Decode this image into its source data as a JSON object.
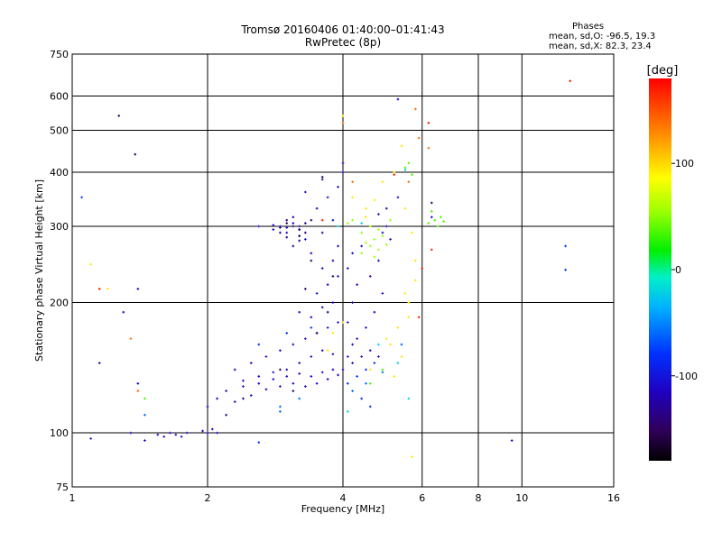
{
  "header": {
    "title": "Tromsø 20160406 01:40:00–01:41:43",
    "subtitle": "RwPretec (8p)"
  },
  "stats": {
    "heading": "Phases",
    "line_o": "mean, sd,O: -96.5, 19.3",
    "line_x": "mean, sd,X:  82.3, 23.4"
  },
  "colorbar": {
    "title": "[deg]",
    "ticks": [
      {
        "value": 100,
        "label": "100"
      },
      {
        "value": 0,
        "label": "0"
      },
      {
        "value": -100,
        "label": "-100"
      }
    ],
    "range": [
      -180,
      180
    ]
  },
  "chart_data": {
    "type": "scatter",
    "xlabel": "Frequency [MHz]",
    "ylabel": "Stationary phase Virtual Height [km]",
    "xscale": "log",
    "yscale": "log",
    "xlim": [
      1,
      16
    ],
    "ylim": [
      75,
      750
    ],
    "xticks": [
      {
        "value": 1,
        "label": "1"
      },
      {
        "value": 2,
        "label": "2"
      },
      {
        "value": 4,
        "label": "4"
      },
      {
        "value": 6,
        "label": "6"
      },
      {
        "value": 8,
        "label": "8"
      },
      {
        "value": 10,
        "label": "10"
      },
      {
        "value": 16,
        "label": "16"
      }
    ],
    "yticks": [
      {
        "value": 75,
        "label": "75"
      },
      {
        "value": 100,
        "label": "100"
      },
      {
        "value": 200,
        "label": "200"
      },
      {
        "value": 300,
        "label": "300"
      },
      {
        "value": 400,
        "label": "400"
      },
      {
        "value": 500,
        "label": "500"
      },
      {
        "value": 600,
        "label": "600"
      },
      {
        "value": 750,
        "label": "750"
      }
    ],
    "grid": true,
    "series": [
      {
        "color_value": -110,
        "points": [
          [
            1.55,
            99
          ],
          [
            1.6,
            98
          ],
          [
            1.65,
            100
          ],
          [
            1.7,
            99
          ],
          [
            1.75,
            98
          ],
          [
            1.8,
            100
          ],
          [
            1.95,
            101
          ],
          [
            2.0,
            100
          ],
          [
            2.05,
            102
          ],
          [
            2.1,
            100
          ],
          [
            2.0,
            115
          ],
          [
            2.1,
            120
          ],
          [
            2.2,
            125
          ],
          [
            2.3,
            118
          ],
          [
            2.4,
            128
          ],
          [
            2.5,
            122
          ],
          [
            2.6,
            130
          ],
          [
            2.7,
            126
          ],
          [
            2.8,
            133
          ],
          [
            2.9,
            128
          ],
          [
            3.0,
            135
          ],
          [
            3.1,
            130
          ],
          [
            3.2,
            137
          ],
          [
            3.3,
            128
          ],
          [
            3.4,
            135
          ],
          [
            3.5,
            130
          ],
          [
            3.6,
            138
          ],
          [
            3.7,
            133
          ],
          [
            3.8,
            140
          ],
          [
            3.9,
            136
          ],
          [
            2.3,
            140
          ],
          [
            2.5,
            145
          ],
          [
            2.7,
            150
          ],
          [
            2.9,
            155
          ],
          [
            3.1,
            160
          ],
          [
            3.3,
            165
          ],
          [
            3.5,
            170
          ],
          [
            3.7,
            175
          ],
          [
            3.9,
            180
          ],
          [
            3.4,
            185
          ],
          [
            3.2,
            190
          ],
          [
            3.6,
            195
          ],
          [
            3.8,
            200
          ],
          [
            3.5,
            210
          ],
          [
            3.7,
            220
          ],
          [
            3.9,
            230
          ],
          [
            3.6,
            240
          ],
          [
            3.8,
            250
          ],
          [
            3.4,
            260
          ],
          [
            3.9,
            270
          ],
          [
            3.3,
            280
          ],
          [
            3.6,
            290
          ],
          [
            3.8,
            310
          ],
          [
            3.5,
            330
          ],
          [
            3.7,
            350
          ],
          [
            3.9,
            370
          ],
          [
            3.6,
            385
          ],
          [
            4.0,
            400
          ],
          [
            4.0,
            420
          ],
          [
            3.3,
            360
          ],
          [
            2.6,
            300
          ],
          [
            2.8,
            302
          ],
          [
            3.0,
            298
          ],
          [
            3.1,
            305
          ],
          [
            3.2,
            295
          ],
          [
            3.0,
            290
          ],
          [
            2.9,
            300
          ],
          [
            3.2,
            285
          ],
          [
            4.2,
            145
          ],
          [
            4.4,
            150
          ],
          [
            4.6,
            155
          ],
          [
            4.8,
            150
          ],
          [
            4.3,
            165
          ],
          [
            4.5,
            175
          ],
          [
            4.7,
            190
          ],
          [
            4.9,
            210
          ],
          [
            4.6,
            230
          ],
          [
            4.8,
            250
          ],
          [
            4.4,
            270
          ],
          [
            4.9,
            290
          ],
          [
            5.0,
            300
          ],
          [
            5.1,
            280
          ],
          [
            5.0,
            330
          ],
          [
            5.3,
            350
          ],
          [
            4.8,
            320
          ],
          [
            3.4,
            150
          ],
          [
            3.6,
            155
          ],
          [
            3.8,
            152
          ],
          [
            3.2,
            145
          ],
          [
            3.0,
            140
          ],
          [
            2.8,
            138
          ],
          [
            2.6,
            135
          ],
          [
            2.4,
            132
          ],
          [
            4.0,
            140
          ],
          [
            4.1,
            150
          ],
          [
            4.2,
            160
          ],
          [
            4.1,
            180
          ],
          [
            4.2,
            200
          ],
          [
            4.3,
            220
          ],
          [
            4.1,
            240
          ],
          [
            4.2,
            260
          ],
          [
            1.1,
            97
          ],
          [
            1.15,
            145
          ],
          [
            1.35,
            100
          ],
          [
            1.4,
            130
          ],
          [
            1.45,
            96
          ],
          [
            1.3,
            190
          ],
          [
            1.4,
            215
          ],
          [
            5.3,
            590
          ],
          [
            9.5,
            96
          ],
          [
            6.3,
            315
          ]
        ]
      },
      {
        "color_value": -145,
        "points": [
          [
            3.1,
            300
          ],
          [
            3.2,
            295
          ],
          [
            3.0,
            305
          ],
          [
            2.9,
            298
          ],
          [
            3.3,
            290
          ],
          [
            3.4,
            310
          ],
          [
            3.2,
            285
          ],
          [
            3.5,
            170
          ],
          [
            3.7,
            190
          ],
          [
            3.3,
            215
          ],
          [
            3.8,
            230
          ],
          [
            3.4,
            250
          ],
          [
            2.9,
            140
          ],
          [
            3.1,
            125
          ],
          [
            2.4,
            120
          ],
          [
            2.2,
            110
          ],
          [
            1.27,
            540
          ],
          [
            1.38,
            440
          ],
          [
            6.3,
            340
          ],
          [
            3.6,
            390
          ]
        ]
      },
      {
        "color_value": -130,
        "points": [
          [
            3.0,
            310
          ],
          [
            3.1,
            315
          ],
          [
            3.2,
            300
          ],
          [
            3.3,
            305
          ],
          [
            2.8,
            295
          ],
          [
            2.9,
            290
          ],
          [
            3.0,
            283
          ],
          [
            3.2,
            278
          ],
          [
            3.1,
            270
          ]
        ]
      },
      {
        "color_value": -80,
        "points": [
          [
            4.1,
            130
          ],
          [
            4.3,
            135
          ],
          [
            4.5,
            140
          ],
          [
            4.7,
            145
          ],
          [
            2.6,
            160
          ],
          [
            3.0,
            170
          ],
          [
            3.4,
            175
          ],
          [
            4.6,
            115
          ],
          [
            4.4,
            120
          ],
          [
            1.05,
            350
          ],
          [
            12.5,
            270
          ],
          [
            12.5,
            238
          ],
          [
            2.6,
            95
          ]
        ]
      },
      {
        "color_value": -60,
        "points": [
          [
            4.2,
            125
          ],
          [
            4.5,
            130
          ],
          [
            4.9,
            138
          ],
          [
            2.9,
            115
          ],
          [
            3.2,
            120
          ],
          [
            1.45,
            110
          ],
          [
            2.9,
            112
          ],
          [
            5.4,
            160
          ]
        ]
      },
      {
        "color_value": -20,
        "points": [
          [
            3.9,
            300
          ],
          [
            4.4,
            305
          ],
          [
            4.8,
            160
          ],
          [
            5.3,
            145
          ],
          [
            5.6,
            120
          ],
          [
            4.1,
            112
          ],
          [
            5.5,
            405
          ]
        ]
      },
      {
        "color_value": 35,
        "points": [
          [
            5.5,
            410
          ],
          [
            5.6,
            420
          ],
          [
            6.2,
            305
          ],
          [
            6.4,
            310
          ],
          [
            6.5,
            300
          ],
          [
            6.6,
            315
          ],
          [
            6.3,
            325
          ],
          [
            6.7,
            308
          ],
          [
            4.6,
            130
          ],
          [
            4.9,
            140
          ],
          [
            5.7,
            395
          ],
          [
            1.45,
            120
          ]
        ]
      },
      {
        "color_value": 55,
        "points": [
          [
            4.5,
            275
          ],
          [
            4.6,
            270
          ],
          [
            4.7,
            280
          ],
          [
            4.8,
            265
          ],
          [
            4.9,
            285
          ],
          [
            5.0,
            272
          ],
          [
            4.4,
            290
          ],
          [
            4.6,
            300
          ],
          [
            4.8,
            295
          ],
          [
            5.1,
            310
          ],
          [
            4.4,
            260
          ],
          [
            4.7,
            255
          ],
          [
            4.1,
            305
          ],
          [
            4.2,
            310
          ]
        ]
      },
      {
        "color_value": 95,
        "points": [
          [
            4.5,
            330
          ],
          [
            4.7,
            345
          ],
          [
            4.9,
            380
          ],
          [
            5.2,
            400
          ],
          [
            5.4,
            460
          ],
          [
            5.5,
            330
          ],
          [
            5.7,
            290
          ],
          [
            5.8,
            250
          ],
          [
            5.5,
            210
          ],
          [
            5.6,
            185
          ],
          [
            5.3,
            175
          ],
          [
            5.4,
            150
          ],
          [
            5.2,
            135
          ],
          [
            5.1,
            160
          ],
          [
            3.8,
            170
          ],
          [
            4.0,
            180
          ],
          [
            3.7,
            155
          ],
          [
            4.5,
            315
          ],
          [
            4.2,
            350
          ],
          [
            4.6,
            140
          ],
          [
            5.6,
            200
          ],
          [
            5.8,
            225
          ],
          [
            5.0,
            165
          ],
          [
            4.0,
            540
          ],
          [
            1.1,
            245
          ],
          [
            1.2,
            215
          ],
          [
            5.7,
            88
          ]
        ]
      },
      {
        "color_value": 140,
        "points": [
          [
            5.8,
            560
          ],
          [
            4.0,
            520
          ],
          [
            4.2,
            380
          ],
          [
            1.35,
            165
          ],
          [
            1.4,
            125
          ],
          [
            5.9,
            480
          ],
          [
            6.2,
            455
          ],
          [
            5.6,
            380
          ]
        ]
      },
      {
        "color_value": 170,
        "points": [
          [
            12.8,
            650
          ],
          [
            6.3,
            265
          ],
          [
            6.0,
            240
          ],
          [
            5.9,
            185
          ],
          [
            5.2,
            395
          ],
          [
            3.6,
            310
          ],
          [
            1.15,
            215
          ],
          [
            6.2,
            520
          ]
        ]
      }
    ]
  }
}
